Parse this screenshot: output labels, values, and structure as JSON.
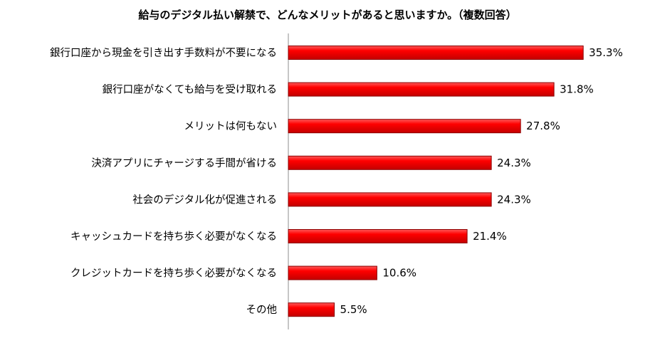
{
  "chart_data": {
    "type": "bar",
    "orientation": "horizontal",
    "title": "給与のデジタル払い解禁で、どんなメリットがあると思いますか。（複数回答）",
    "categories": [
      "銀行口座から現金を引き出す手数料が不要になる",
      "銀行口座がなくても給与を受け取れる",
      "メリットは何もない",
      "決済アプリにチャージする手間が省ける",
      "社会のデジタル化が促進される",
      "キャッシュカードを持ち歩く必要がなくなる",
      "クレジットカードを持ち歩く必要がなくなる",
      "その他"
    ],
    "values": [
      35.3,
      31.8,
      27.8,
      24.3,
      24.3,
      21.4,
      10.6,
      5.5
    ],
    "value_labels": [
      "35.3%",
      "31.8%",
      "27.8%",
      "24.3%",
      "24.3%",
      "21.4%",
      "10.6%",
      "5.5%"
    ],
    "unit": "%",
    "xlim": [
      0,
      37.5
    ],
    "grid": false,
    "legend": "none",
    "bar_color": "#ff0000",
    "bar_edge_color": "#8b0000"
  }
}
